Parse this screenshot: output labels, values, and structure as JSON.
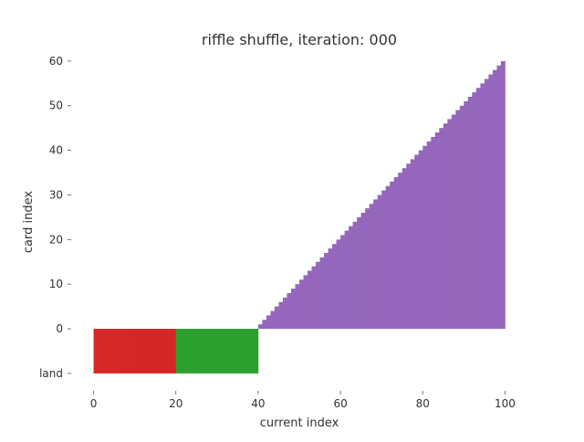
{
  "chart_data": {
    "type": "bar",
    "title": "riffle shuffle, iteration: 000",
    "xlabel": "current index",
    "ylabel": "card index",
    "xlim": [
      -5,
      105
    ],
    "ylim": [
      -13.5,
      61
    ],
    "grid": false,
    "legend": "none",
    "x_ticks": [
      0,
      20,
      40,
      60,
      80,
      100
    ],
    "x_tick_labels": [
      "0",
      "20",
      "40",
      "60",
      "80",
      "100"
    ],
    "y_ticks": [
      -10,
      0,
      10,
      20,
      30,
      40,
      50,
      60
    ],
    "y_tick_labels": [
      "land",
      "0",
      "10",
      "20",
      "30",
      "40",
      "50",
      "60"
    ],
    "colors": {
      "land_first": "#d62728",
      "land_second": "#2ca02c",
      "spell": "#9467bd"
    },
    "series": [
      {
        "kind": "land",
        "x": [
          0,
          1,
          2,
          3,
          4,
          5,
          6,
          7,
          8,
          9,
          10,
          11,
          12,
          13,
          14,
          15,
          16,
          17,
          18,
          19
        ],
        "values": [
          -10,
          -10,
          -10,
          -10,
          -10,
          -10,
          -10,
          -10,
          -10,
          -10,
          -10,
          -10,
          -10,
          -10,
          -10,
          -10,
          -10,
          -10,
          -10,
          -10
        ]
      },
      {
        "kind": "land",
        "x": [
          20,
          21,
          22,
          23,
          24,
          25,
          26,
          27,
          28,
          29,
          30,
          31,
          32,
          33,
          34,
          35,
          36,
          37,
          38,
          39
        ],
        "values": [
          -10,
          -10,
          -10,
          -10,
          -10,
          -10,
          -10,
          -10,
          -10,
          -10,
          -10,
          -10,
          -10,
          -10,
          -10,
          -10,
          -10,
          -10,
          -10,
          -10
        ]
      },
      {
        "kind": "spell",
        "x": [
          40,
          41,
          42,
          43,
          44,
          45,
          46,
          47,
          48,
          49,
          50,
          51,
          52,
          53,
          54,
          55,
          56,
          57,
          58,
          59,
          60,
          61,
          62,
          63,
          64,
          65,
          66,
          67,
          68,
          69,
          70,
          71,
          72,
          73,
          74,
          75,
          76,
          77,
          78,
          79,
          80,
          81,
          82,
          83,
          84,
          85,
          86,
          87,
          88,
          89,
          90,
          91,
          92,
          93,
          94,
          95,
          96,
          97,
          98,
          99
        ],
        "values": [
          1,
          2,
          3,
          4,
          5,
          6,
          7,
          8,
          9,
          10,
          11,
          12,
          13,
          14,
          15,
          16,
          17,
          18,
          19,
          20,
          21,
          22,
          23,
          24,
          25,
          26,
          27,
          28,
          29,
          30,
          31,
          32,
          33,
          34,
          35,
          36,
          37,
          38,
          39,
          40,
          41,
          42,
          43,
          44,
          45,
          46,
          47,
          48,
          49,
          50,
          51,
          52,
          53,
          54,
          55,
          56,
          57,
          58,
          59,
          60
        ]
      }
    ]
  }
}
